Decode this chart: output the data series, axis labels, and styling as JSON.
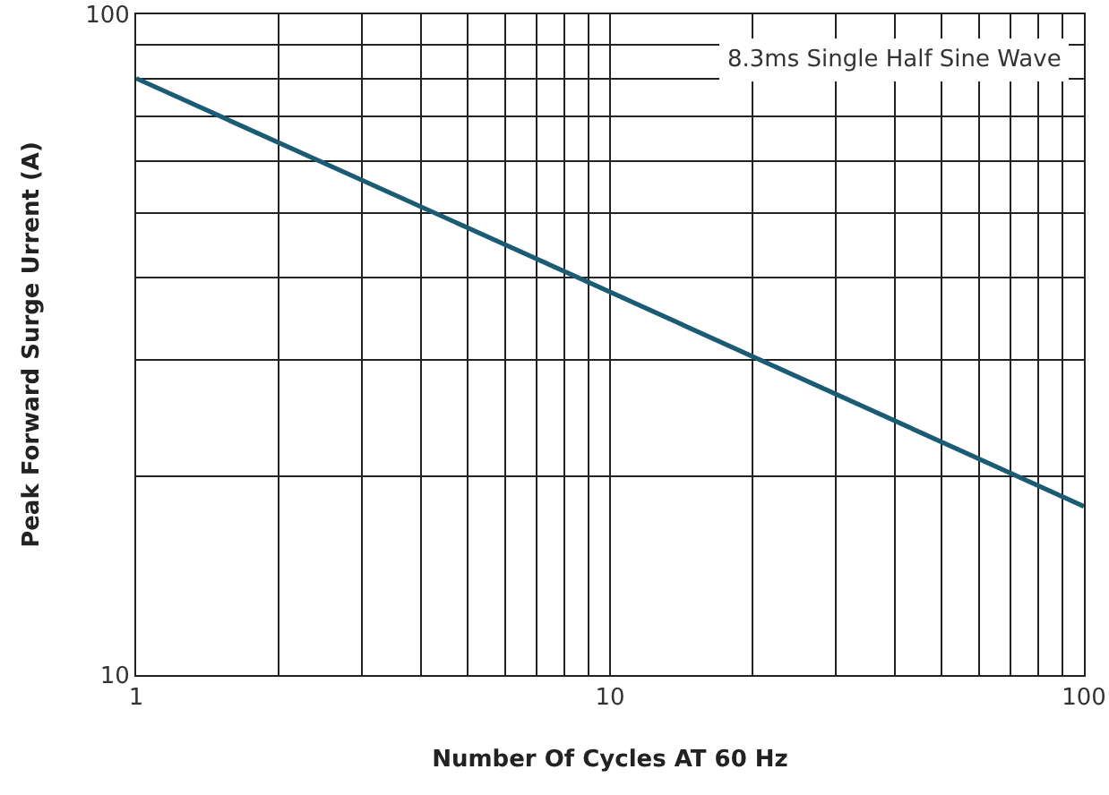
{
  "chart_data": {
    "type": "line",
    "xlabel": "Number Of Cycles AT 60 Hz",
    "ylabel": "Peak Forward Surge Urrent (A)",
    "annotations": [
      "8.3ms Single Half Sine Wave"
    ],
    "log": "xy",
    "grid": true,
    "marker": "none",
    "line_style": "solid",
    "x": [
      1,
      10,
      100
    ],
    "series": [
      {
        "color": "#1b5c74",
        "values": [
          80,
          38,
          18
        ]
      }
    ],
    "xlim": [
      1,
      100
    ],
    "ylim": [
      10,
      100
    ],
    "xticks": [
      1,
      {
        "value": 2,
        "label": null
      },
      {
        "value": 3,
        "label": null
      },
      {
        "value": 4,
        "label": null
      },
      {
        "value": 5,
        "label": null
      },
      {
        "value": 6,
        "label": null
      },
      {
        "value": 7,
        "label": null
      },
      {
        "value": 8,
        "label": null
      },
      {
        "value": 9,
        "label": null
      },
      10,
      {
        "value": 20,
        "label": null
      },
      {
        "value": 30,
        "label": null
      },
      {
        "value": 40,
        "label": null
      },
      {
        "value": 50,
        "label": null
      },
      {
        "value": 60,
        "label": null
      },
      {
        "value": 70,
        "label": null
      },
      {
        "value": 80,
        "label": null
      },
      {
        "value": 90,
        "label": null
      },
      100
    ],
    "yticks": [
      10,
      {
        "value": 20,
        "label": null
      },
      {
        "value": 30,
        "label": null
      },
      {
        "value": 40,
        "label": null
      },
      {
        "value": 50,
        "label": null
      },
      {
        "value": 60,
        "label": null
      },
      {
        "value": 70,
        "label": null
      },
      {
        "value": 80,
        "label": null
      },
      {
        "value": 90,
        "label": null
      },
      100
    ]
  }
}
